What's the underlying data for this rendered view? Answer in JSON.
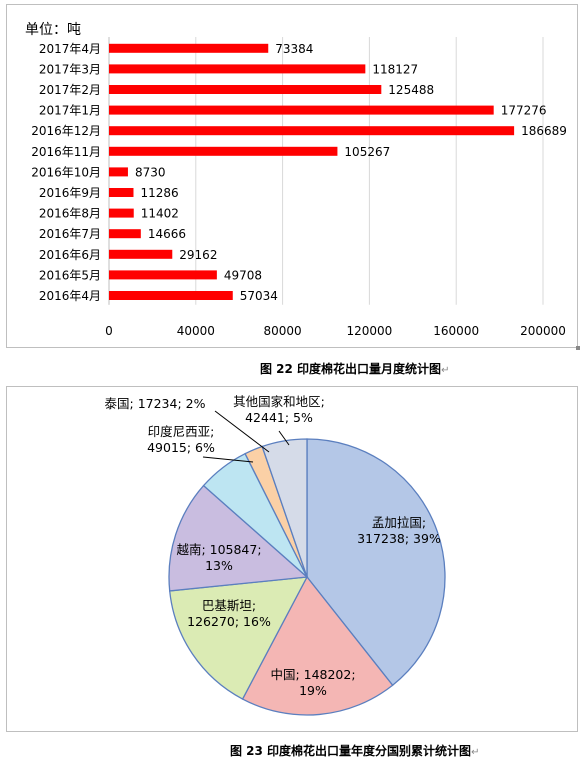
{
  "chart1": {
    "unit_label": "单位：吨",
    "caption": "图 22  印度棉花出口量月度统计图",
    "caption_mark": "↵",
    "chart_data": {
      "type": "bar",
      "orientation": "horizontal",
      "categories": [
        "2017年4月",
        "2017年3月",
        "2017年2月",
        "2017年1月",
        "2016年12月",
        "2016年11月",
        "2016年10月",
        "2016年9月",
        "2016年8月",
        "2016年7月",
        "2016年6月",
        "2016年5月",
        "2016年4月"
      ],
      "values": [
        73384,
        118127,
        125488,
        177276,
        186689,
        105267,
        8730,
        11286,
        11402,
        14666,
        29162,
        49708,
        57034
      ],
      "xlim": [
        0,
        200000
      ],
      "xticks": [
        0,
        40000,
        80000,
        120000,
        160000,
        200000
      ],
      "bar_color": "#ff0000",
      "grid": "vertical",
      "data_labels": true
    }
  },
  "chart2": {
    "caption": "图 23  印度棉花出口量年度分国别累计统计图",
    "caption_mark": "↵",
    "chart_data": {
      "type": "pie",
      "slices": [
        {
          "label": "孟加拉国",
          "value": 317238,
          "percent": "39%",
          "text_lines": [
            "孟加拉国;",
            "317238; 39%"
          ],
          "color": "#b4c7e7"
        },
        {
          "label": "中国",
          "value": 148202,
          "percent": "19%",
          "text_lines": [
            "中国; 148202;",
            "19%"
          ],
          "color": "#f4b6b4"
        },
        {
          "label": "巴基斯坦",
          "value": 126270,
          "percent": "16%",
          "text_lines": [
            "巴基斯坦;",
            "126270; 16%"
          ],
          "color": "#dbebb4"
        },
        {
          "label": "越南",
          "value": 105847,
          "percent": "13%",
          "text_lines": [
            "越南; 105847;",
            "13%"
          ],
          "color": "#c9bde0"
        },
        {
          "label": "印度尼西亚",
          "value": 49015,
          "percent": "6%",
          "text_lines": [
            "印度尼西亚;",
            "49015; 6%"
          ],
          "color": "#bde5f2"
        },
        {
          "label": "泰国",
          "value": 17234,
          "percent": "2%",
          "text_lines": [
            "泰国; 17234; 2%"
          ],
          "color": "#fbd0a6"
        },
        {
          "label": "其他国家和地区",
          "value": 42441,
          "percent": "5%",
          "text_lines": [
            "其他国家和地区;",
            "42441; 5%"
          ],
          "color": "#d5dbe8"
        }
      ]
    }
  }
}
